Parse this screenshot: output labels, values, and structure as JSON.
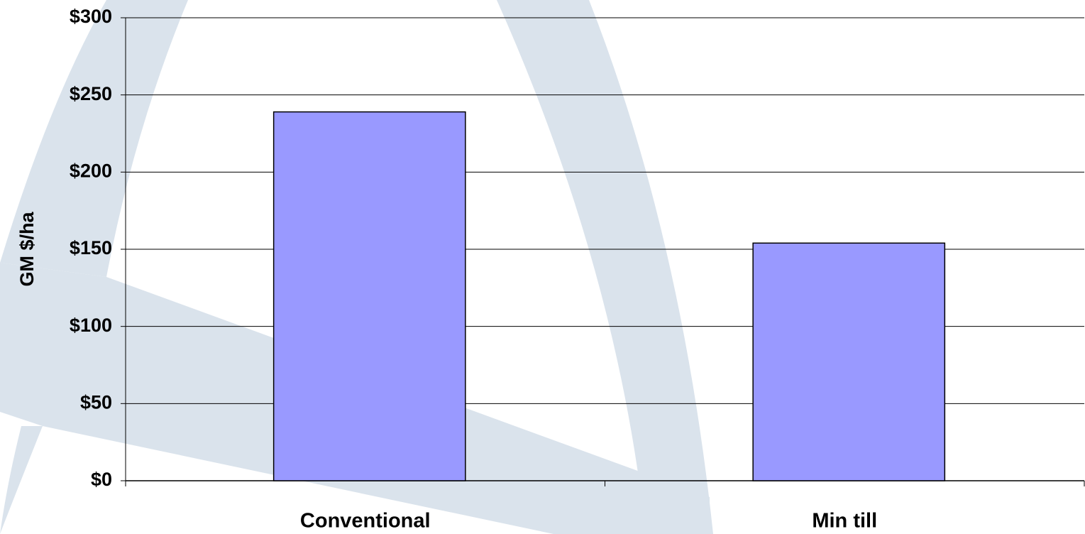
{
  "chart_data": {
    "type": "bar",
    "y_label": "GM  $/ha",
    "categories": [
      "Conventional",
      "Min till"
    ],
    "values": [
      239,
      154
    ],
    "color": "#9999ff",
    "ylim": [
      0,
      300
    ],
    "yticks": [
      {
        "value": 0,
        "label": "$0"
      },
      {
        "value": 50,
        "label": "$50"
      },
      {
        "value": 100,
        "label": "$100"
      },
      {
        "value": 150,
        "label": "$150"
      },
      {
        "value": 200,
        "label": "$200"
      },
      {
        "value": 250,
        "label": "$250"
      },
      {
        "value": 300,
        "label": "$300"
      }
    ],
    "grid": true
  }
}
